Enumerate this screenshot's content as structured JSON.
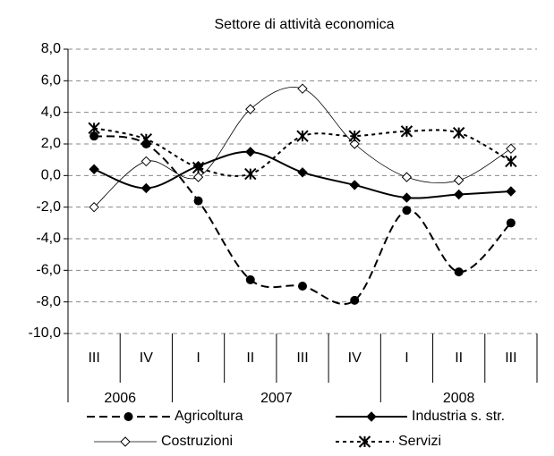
{
  "chart_data": {
    "type": "line",
    "title": "Settore di attività economica",
    "categories": [
      "III",
      "IV",
      "I",
      "II",
      "III",
      "IV",
      "I",
      "II",
      "III"
    ],
    "groups": [
      {
        "label": "2006",
        "count": 2
      },
      {
        "label": "2007",
        "count": 4
      },
      {
        "label": "2008",
        "count": 3
      }
    ],
    "ylim": [
      -10,
      8
    ],
    "yticks": [
      {
        "value": -10,
        "label": "-10,0"
      },
      {
        "value": -8,
        "label": "-8,0"
      },
      {
        "value": -6,
        "label": "-6,0"
      },
      {
        "value": -4,
        "label": "-4,0"
      },
      {
        "value": -2,
        "label": "-2,0"
      },
      {
        "value": 0,
        "label": "0,0"
      },
      {
        "value": 2,
        "label": "2,0"
      },
      {
        "value": 4,
        "label": "4,0"
      },
      {
        "value": 6,
        "label": "6,0"
      },
      {
        "value": 8,
        "label": "8,0"
      }
    ],
    "grid": true,
    "series": [
      {
        "name": "Agricoltura",
        "color": "#000000",
        "dash": "dashed",
        "marker": "circle",
        "values": [
          2.5,
          2.0,
          -1.6,
          -6.6,
          -7.0,
          -7.9,
          -2.2,
          -6.1,
          -3.0
        ]
      },
      {
        "name": "Industria s. str.",
        "color": "#000000",
        "dash": "solid",
        "marker": "diamond",
        "values": [
          0.4,
          -0.8,
          0.6,
          1.5,
          0.2,
          -0.6,
          -1.4,
          -1.2,
          -1.0
        ]
      },
      {
        "name": "Costruzioni",
        "color": "#000000",
        "dash": "thin",
        "marker": "open-diamond",
        "values": [
          -2.0,
          0.9,
          -0.1,
          4.2,
          5.5,
          2.0,
          -0.1,
          -0.3,
          1.7
        ]
      },
      {
        "name": "Servizi",
        "color": "#000000",
        "dash": "dotted",
        "marker": "star",
        "values": [
          3.0,
          2.3,
          0.5,
          0.1,
          2.5,
          2.5,
          2.8,
          2.7,
          0.9
        ]
      }
    ]
  }
}
